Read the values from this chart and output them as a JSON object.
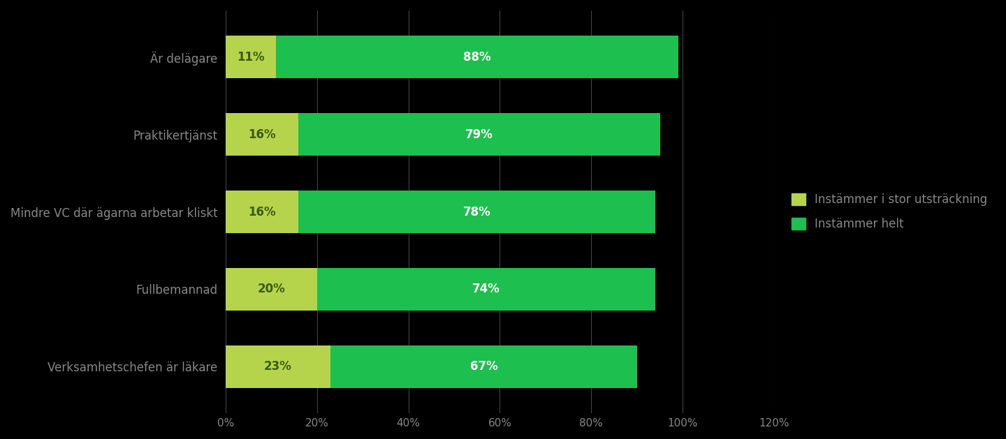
{
  "categories": [
    "Verksamhetschefen är läkare",
    "Fullbemannad",
    "Mindre VC där ägarna arbetar kliskt",
    "Praktikertjänst",
    "Är delägare"
  ],
  "values_partial": [
    23,
    20,
    16,
    16,
    11
  ],
  "values_full": [
    67,
    74,
    78,
    79,
    88
  ],
  "color_partial": "#b5d44b",
  "color_full": "#1dbf4e",
  "legend_partial": "Instämmer i stor utsträckning",
  "legend_full": "Instämmer helt",
  "xlim": [
    0,
    120
  ],
  "xticks": [
    0,
    20,
    40,
    60,
    80,
    100,
    120
  ],
  "xtick_labels": [
    "0%",
    "20%",
    "40%",
    "60%",
    "80%",
    "100%",
    "120%"
  ],
  "bar_height": 0.55,
  "background_color": "#000000",
  "text_color": "#888888",
  "label_color_partial": "#3a5a10",
  "label_color_full": "#ffffff",
  "grid_color": "#444444",
  "font_size_labels": 12,
  "font_size_ticks": 11,
  "font_size_legend": 12,
  "font_size_bar_labels": 12
}
